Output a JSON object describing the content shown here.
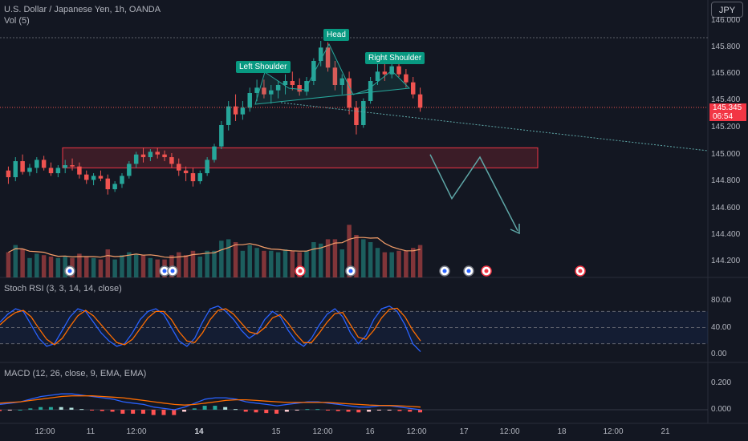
{
  "header": {
    "symbol_title": "U.S. Dollar / Japanese Yen, 1h, OANDA",
    "volume_label": "Vol (5)",
    "currency": "JPY"
  },
  "price_axis": {
    "labels": [
      "146.000",
      "145.800",
      "145.600",
      "145.400",
      "145.200",
      "145.000",
      "144.800",
      "144.600",
      "144.400",
      "144.200"
    ]
  },
  "current_price": {
    "value": "145.345",
    "countdown": "06:54"
  },
  "patterns": {
    "left_shoulder": "Left Shoulder",
    "head": "Head",
    "right_shoulder": "Right Shoulder"
  },
  "stoch": {
    "title": "Stoch RSI (3, 3, 14, 14, close)",
    "axis": [
      "80.00",
      "40.00",
      "0.00"
    ]
  },
  "macd": {
    "title": "MACD (12, 26, close, 9, EMA, EMA)",
    "axis": [
      "0.200",
      "0.000"
    ]
  },
  "time_axis": [
    {
      "label": "12:00",
      "bold": false
    },
    {
      "label": "11",
      "bold": false
    },
    {
      "label": "12:00",
      "bold": false
    },
    {
      "label": "14",
      "bold": true
    },
    {
      "label": "15",
      "bold": false
    },
    {
      "label": "12:00",
      "bold": false
    },
    {
      "label": "16",
      "bold": false
    },
    {
      "label": "12:00",
      "bold": false
    },
    {
      "label": "17",
      "bold": false
    },
    {
      "label": "12:00",
      "bold": false
    },
    {
      "label": "18",
      "bold": false
    },
    {
      "label": "12:00",
      "bold": false
    },
    {
      "label": "21",
      "bold": false
    }
  ],
  "colors": {
    "up": "#26a69a",
    "down": "#ef5350",
    "background": "#131722",
    "zone": "#f23645",
    "projection": "#5fa8a8"
  },
  "chart_data": {
    "type": "candlestick",
    "symbol": "USDJPY",
    "interval": "1h",
    "price_range": [
      144.1,
      146.05
    ],
    "candles": [
      [
        144.88,
        144.91,
        144.78,
        144.83
      ],
      [
        144.83,
        144.98,
        144.8,
        144.95
      ],
      [
        144.95,
        145.0,
        144.85,
        144.87
      ],
      [
        144.87,
        144.93,
        144.84,
        144.9
      ],
      [
        144.9,
        144.98,
        144.86,
        144.96
      ],
      [
        144.96,
        144.99,
        144.88,
        144.9
      ],
      [
        144.9,
        144.94,
        144.84,
        144.86
      ],
      [
        144.86,
        144.92,
        144.83,
        144.9
      ],
      [
        144.9,
        144.96,
        144.86,
        144.92
      ],
      [
        144.92,
        144.97,
        144.88,
        144.91
      ],
      [
        144.91,
        144.94,
        144.82,
        144.85
      ],
      [
        144.85,
        144.88,
        144.78,
        144.81
      ],
      [
        144.81,
        144.86,
        144.77,
        144.84
      ],
      [
        144.84,
        144.88,
        144.8,
        144.82
      ],
      [
        144.82,
        144.85,
        144.7,
        144.74
      ],
      [
        144.74,
        144.8,
        144.72,
        144.78
      ],
      [
        144.78,
        144.86,
        144.75,
        144.84
      ],
      [
        144.84,
        144.95,
        144.82,
        144.93
      ],
      [
        144.93,
        145.02,
        144.9,
        145.0
      ],
      [
        145.0,
        145.05,
        144.94,
        144.98
      ],
      [
        144.98,
        145.04,
        144.95,
        145.02
      ],
      [
        145.02,
        145.05,
        144.97,
        145.0
      ],
      [
        145.0,
        145.03,
        144.95,
        144.98
      ],
      [
        144.98,
        145.01,
        144.9,
        144.93
      ],
      [
        144.93,
        144.97,
        144.84,
        144.88
      ],
      [
        144.88,
        144.91,
        144.8,
        144.86
      ],
      [
        144.86,
        144.9,
        144.76,
        144.8
      ],
      [
        144.8,
        144.88,
        144.78,
        144.86
      ],
      [
        144.86,
        144.98,
        144.84,
        144.96
      ],
      [
        144.96,
        145.08,
        144.94,
        145.06
      ],
      [
        145.06,
        145.25,
        145.04,
        145.22
      ],
      [
        145.22,
        145.4,
        145.18,
        145.36
      ],
      [
        145.36,
        145.45,
        145.25,
        145.3
      ],
      [
        145.3,
        145.4,
        145.26,
        145.35
      ],
      [
        145.35,
        145.5,
        145.32,
        145.46
      ],
      [
        145.46,
        145.56,
        145.4,
        145.5
      ],
      [
        145.5,
        145.56,
        145.42,
        145.45
      ],
      [
        145.45,
        145.52,
        145.38,
        145.48
      ],
      [
        145.48,
        145.55,
        145.42,
        145.52
      ],
      [
        145.52,
        145.6,
        145.45,
        145.55
      ],
      [
        145.55,
        145.62,
        145.48,
        145.52
      ],
      [
        145.52,
        145.57,
        145.44,
        145.47
      ],
      [
        145.47,
        145.58,
        145.44,
        145.55
      ],
      [
        145.55,
        145.72,
        145.52,
        145.7
      ],
      [
        145.7,
        145.85,
        145.66,
        145.8
      ],
      [
        145.8,
        145.84,
        145.62,
        145.65
      ],
      [
        145.65,
        145.7,
        145.48,
        145.52
      ],
      [
        145.52,
        145.6,
        145.45,
        145.57
      ],
      [
        145.57,
        145.62,
        145.3,
        145.35
      ],
      [
        145.35,
        145.4,
        145.15,
        145.22
      ],
      [
        145.22,
        145.42,
        145.2,
        145.4
      ],
      [
        145.4,
        145.58,
        145.38,
        145.55
      ],
      [
        145.55,
        145.68,
        145.52,
        145.62
      ],
      [
        145.62,
        145.68,
        145.55,
        145.6
      ],
      [
        145.6,
        145.7,
        145.57,
        145.66
      ],
      [
        145.66,
        145.72,
        145.58,
        145.6
      ],
      [
        145.6,
        145.64,
        145.5,
        145.54
      ],
      [
        145.54,
        145.58,
        145.42,
        145.45
      ],
      [
        145.45,
        145.5,
        145.32,
        145.35
      ]
    ],
    "volume_ma_period": 5,
    "resistance_zone": {
      "high": 145.05,
      "low": 144.9
    },
    "projection": [
      145.0,
      144.67,
      144.98,
      144.43
    ],
    "stoch_rsi": {
      "k": [
        60,
        75,
        85,
        80,
        55,
        30,
        15,
        20,
        45,
        70,
        85,
        80,
        60,
        40,
        25,
        15,
        20,
        40,
        65,
        80,
        85,
        75,
        50,
        25,
        15,
        30,
        60,
        85,
        90,
        80,
        65,
        45,
        30,
        40,
        65,
        80,
        70,
        45,
        25,
        15,
        30,
        55,
        75,
        85,
        70,
        40,
        20,
        35,
        65,
        85,
        90,
        80,
        55,
        20,
        5
      ],
      "d": [
        55,
        68,
        78,
        82,
        70,
        48,
        28,
        18,
        30,
        52,
        72,
        82,
        72,
        55,
        38,
        22,
        18,
        28,
        48,
        68,
        80,
        80,
        65,
        42,
        25,
        22,
        40,
        65,
        82,
        85,
        75,
        58,
        42,
        38,
        50,
        68,
        74,
        58,
        38,
        22,
        22,
        40,
        60,
        76,
        78,
        55,
        32,
        28,
        45,
        68,
        84,
        86,
        70,
        45,
        25
      ]
    },
    "macd": {
      "line": [
        0.04,
        0.05,
        0.06,
        0.08,
        0.1,
        0.11,
        0.12,
        0.12,
        0.11,
        0.1,
        0.09,
        0.08,
        0.06,
        0.05,
        0.04,
        0.02,
        0.01,
        0.0,
        0.02,
        0.05,
        0.08,
        0.09,
        0.09,
        0.08,
        0.06,
        0.05,
        0.04,
        0.03,
        0.04,
        0.05,
        0.06,
        0.06,
        0.05,
        0.04,
        0.03,
        0.02,
        0.02,
        0.03,
        0.03,
        0.02,
        0.01,
        0.0
      ],
      "signal": [
        0.05,
        0.055,
        0.06,
        0.07,
        0.08,
        0.09,
        0.1,
        0.105,
        0.105,
        0.105,
        0.1,
        0.095,
        0.09,
        0.08,
        0.07,
        0.06,
        0.05,
        0.04,
        0.035,
        0.04,
        0.05,
        0.06,
        0.07,
        0.075,
        0.075,
        0.07,
        0.065,
        0.06,
        0.055,
        0.055,
        0.055,
        0.055,
        0.055,
        0.05,
        0.045,
        0.04,
        0.035,
        0.033,
        0.032,
        0.03,
        0.025,
        0.02
      ]
    }
  }
}
